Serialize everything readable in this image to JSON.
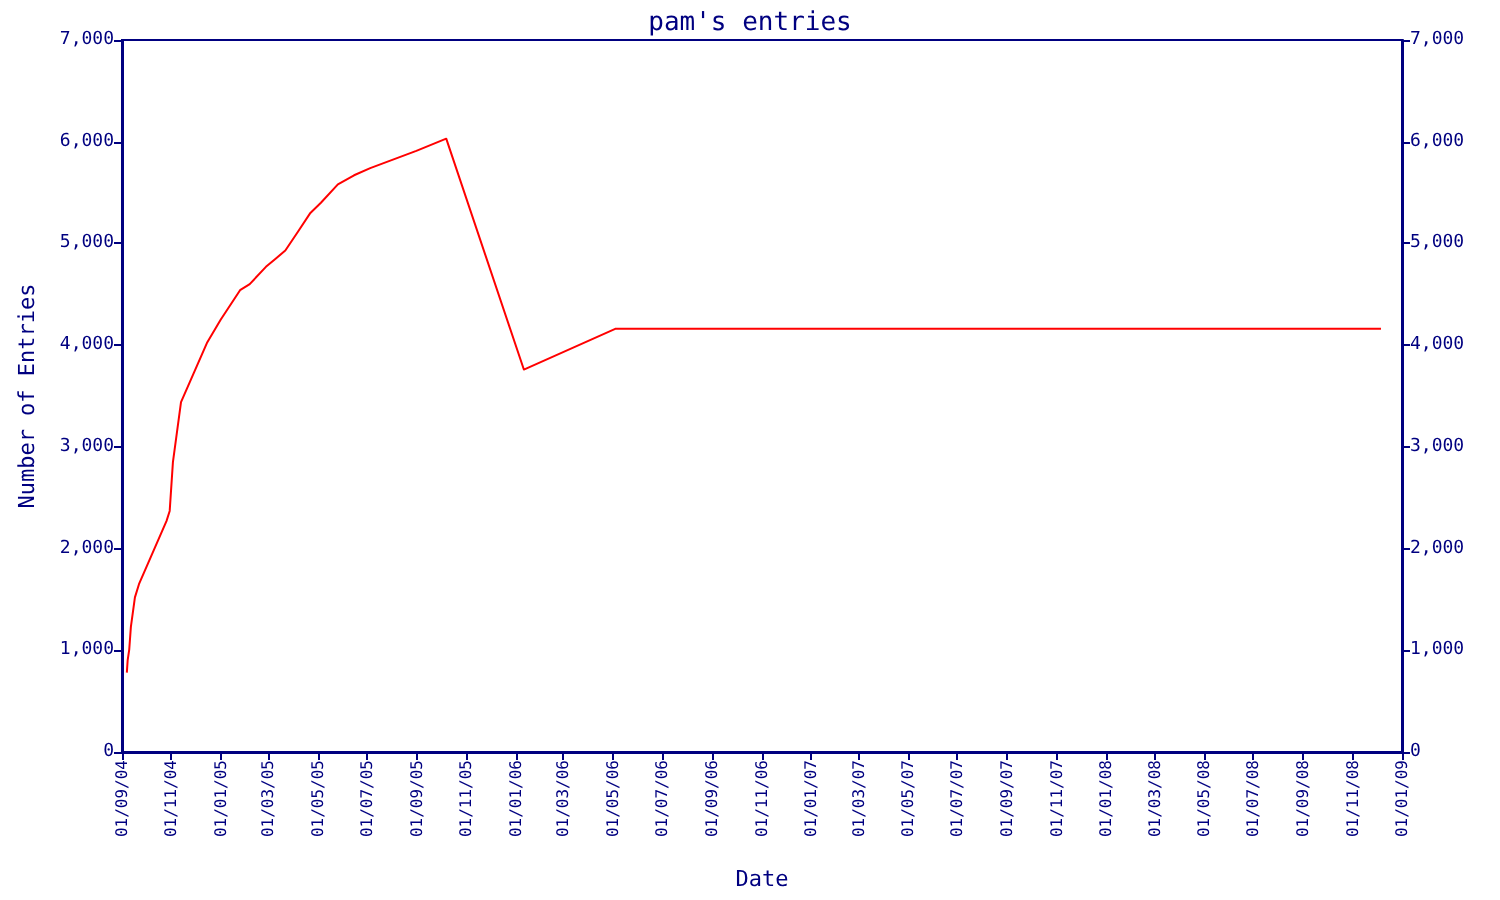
{
  "chart_data": {
    "type": "line",
    "title": "pam's entries",
    "xlabel": "Date",
    "ylabel": "Number of Entries",
    "x": [
      "2004-09-07",
      "2004-09-08",
      "2004-09-10",
      "2004-09-12",
      "2004-09-17",
      "2004-09-22",
      "2004-10-26",
      "2004-10-30",
      "2004-11-03",
      "2004-11-13",
      "2004-11-29",
      "2004-12-15",
      "2005-01-01",
      "2005-01-25",
      "2005-02-06",
      "2005-02-26",
      "2005-03-10",
      "2005-03-22",
      "2005-04-07",
      "2005-04-22",
      "2005-05-05",
      "2005-05-26",
      "2005-06-15",
      "2005-07-05",
      "2005-08-31",
      "2005-10-07",
      "2006-01-11",
      "2006-05-04",
      "2008-12-06"
    ],
    "series": [
      {
        "color": "#ff0000",
        "values": [
          780,
          900,
          1010,
          1230,
          1520,
          1650,
          2270,
          2370,
          2850,
          3440,
          3730,
          4020,
          4250,
          4540,
          4600,
          4770,
          4850,
          4930,
          5120,
          5300,
          5400,
          5580,
          5670,
          5740,
          5910,
          6030,
          3760,
          4160,
          4160
        ]
      }
    ],
    "xlim": [
      "2004-09-01",
      "2009-01-01"
    ],
    "xticks": [
      {
        "value": "2004-09-01",
        "label": "01/09/04"
      },
      {
        "value": "2004-11-01",
        "label": "01/11/04"
      },
      {
        "value": "2005-01-01",
        "label": "01/01/05"
      },
      {
        "value": "2005-03-01",
        "label": "01/03/05"
      },
      {
        "value": "2005-05-01",
        "label": "01/05/05"
      },
      {
        "value": "2005-07-01",
        "label": "01/07/05"
      },
      {
        "value": "2005-09-01",
        "label": "01/09/05"
      },
      {
        "value": "2005-11-01",
        "label": "01/11/05"
      },
      {
        "value": "2006-01-01",
        "label": "01/01/06"
      },
      {
        "value": "2006-03-01",
        "label": "01/03/06"
      },
      {
        "value": "2006-05-01",
        "label": "01/05/06"
      },
      {
        "value": "2006-07-01",
        "label": "01/07/06"
      },
      {
        "value": "2006-09-01",
        "label": "01/09/06"
      },
      {
        "value": "2006-11-01",
        "label": "01/11/06"
      },
      {
        "value": "2007-01-01",
        "label": "01/01/07"
      },
      {
        "value": "2007-03-01",
        "label": "01/03/07"
      },
      {
        "value": "2007-05-01",
        "label": "01/05/07"
      },
      {
        "value": "2007-07-01",
        "label": "01/07/07"
      },
      {
        "value": "2007-09-01",
        "label": "01/09/07"
      },
      {
        "value": "2007-11-01",
        "label": "01/11/07"
      },
      {
        "value": "2008-01-01",
        "label": "01/01/08"
      },
      {
        "value": "2008-03-01",
        "label": "01/03/08"
      },
      {
        "value": "2008-05-01",
        "label": "01/05/08"
      },
      {
        "value": "2008-07-01",
        "label": "01/07/08"
      },
      {
        "value": "2008-09-01",
        "label": "01/09/08"
      },
      {
        "value": "2008-11-01",
        "label": "01/11/08"
      },
      {
        "value": "2009-01-01",
        "label": "01/01/09"
      }
    ],
    "ylim": [
      0,
      7000
    ],
    "yticks": [
      0,
      {
        "value": 1000,
        "label": "1,000"
      },
      {
        "value": 2000,
        "label": "2,000"
      },
      {
        "value": 3000,
        "label": "3,000"
      },
      {
        "value": 4000,
        "label": "4,000"
      },
      {
        "value": 5000,
        "label": "5,000"
      },
      {
        "value": 6000,
        "label": "6,000"
      },
      {
        "value": 7000,
        "label": "7,000"
      }
    ],
    "y2lim": [
      0,
      7000
    ],
    "y2ticks": [
      0,
      {
        "value": 1000,
        "label": "1,000"
      },
      {
        "value": 2000,
        "label": "2,000"
      },
      {
        "value": 3000,
        "label": "3,000"
      },
      {
        "value": 4000,
        "label": "4,000"
      },
      {
        "value": 5000,
        "label": "5,000"
      },
      {
        "value": 6000,
        "label": "6,000"
      },
      {
        "value": 7000,
        "label": "7,000"
      }
    ],
    "grid": false,
    "marker": "none",
    "line_style": "solid"
  }
}
